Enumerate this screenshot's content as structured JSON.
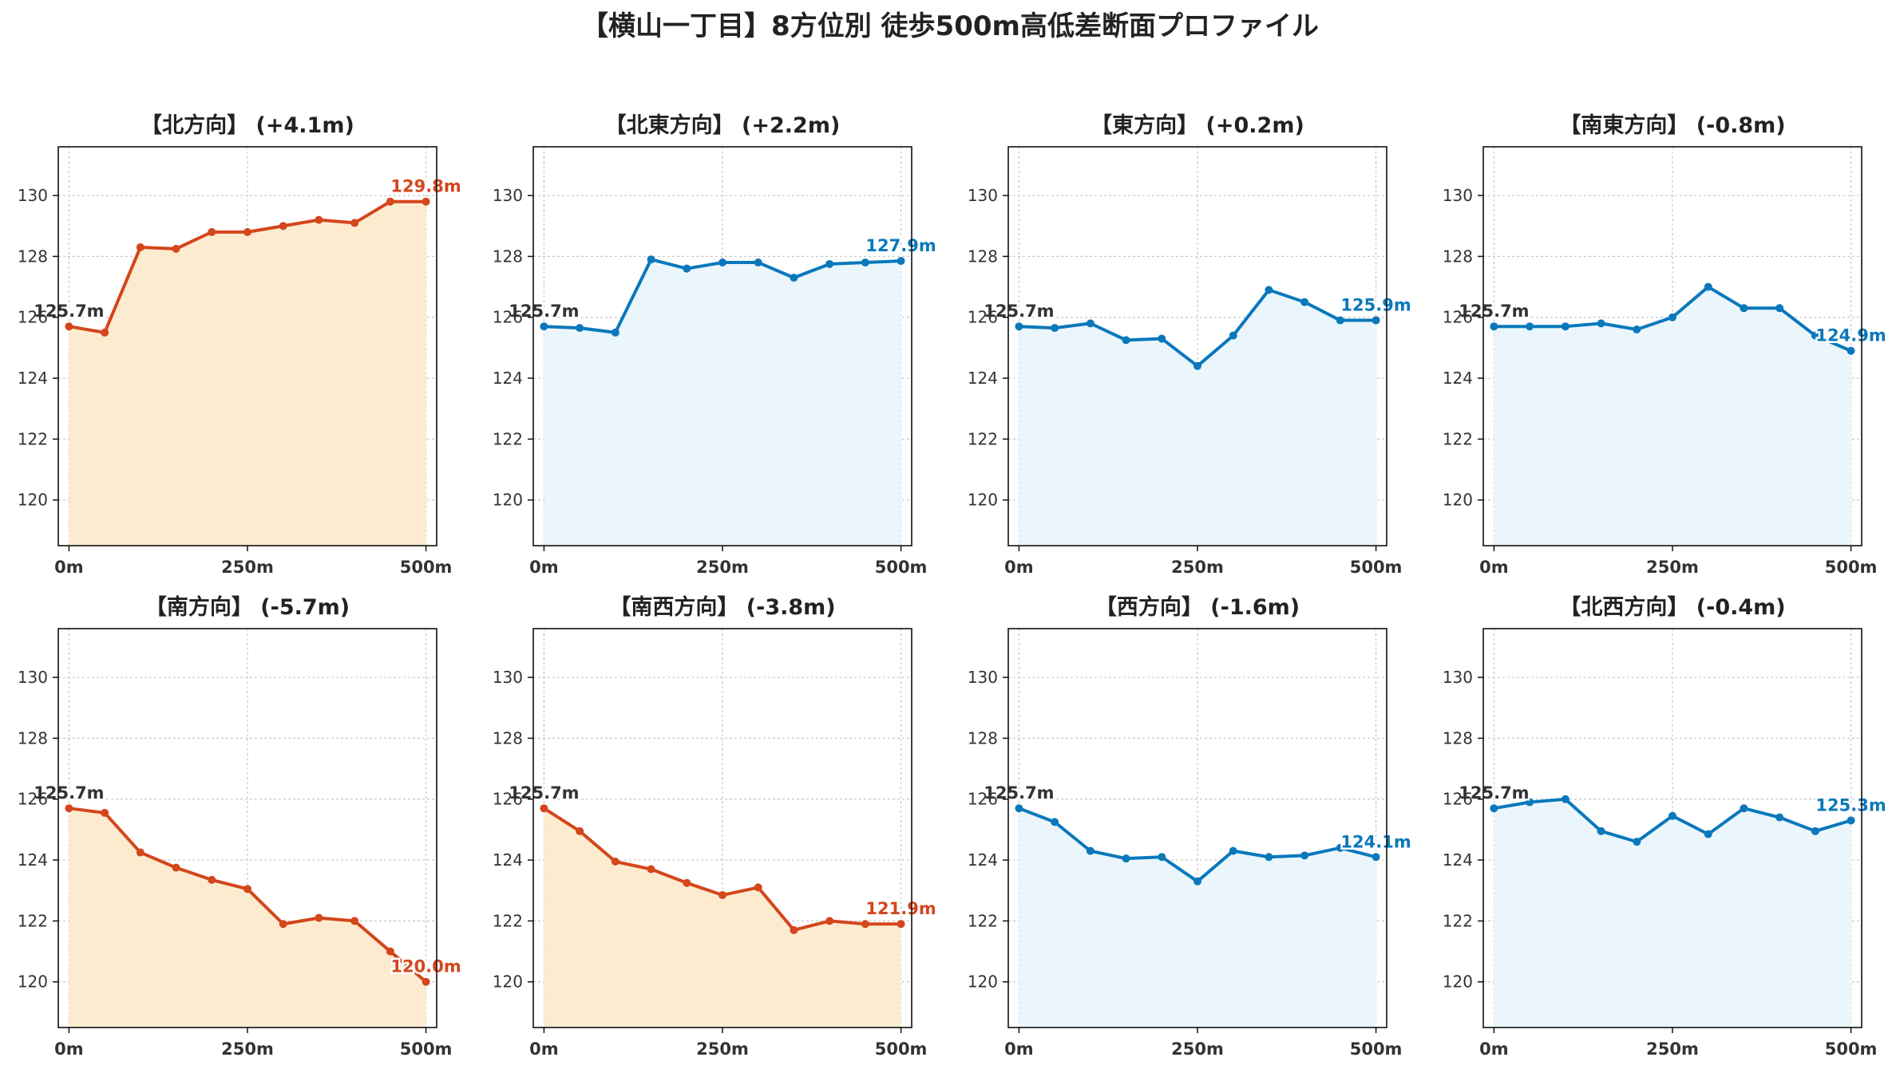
{
  "chart_data": {
    "title": "【横山一丁目】8方位別 徒歩500m高低差断面プロファイル",
    "type": "line",
    "colors": {
      "up": {
        "line": "#d4461c",
        "fill": "#fdebd0"
      },
      "down": {
        "line": "#0a78bb",
        "fill": "#eaf6fc"
      },
      "start_label": "#333333"
    },
    "x": [
      0,
      50,
      100,
      150,
      200,
      250,
      300,
      350,
      400,
      450,
      500
    ],
    "xticks": [
      0,
      250,
      500
    ],
    "xtick_labels": [
      "0m",
      "250m",
      "500m"
    ],
    "xlim": [
      -15,
      515
    ],
    "ylim": [
      118.5,
      131.6
    ],
    "yticks": [
      120,
      122,
      124,
      126,
      128,
      130
    ],
    "ytick_labels": [
      "120",
      "122",
      "124",
      "126",
      "128",
      "130"
    ],
    "grid": true,
    "panels": [
      {
        "title": "【北方向】 (+4.1m)",
        "trend": "up",
        "values": [
          125.7,
          125.5,
          128.3,
          128.25,
          128.8,
          128.8,
          129.0,
          129.2,
          129.1,
          129.8,
          129.8
        ],
        "start_label": "125.7m",
        "end_label": "129.8m"
      },
      {
        "title": "【北東方向】 (+2.2m)",
        "trend": "down",
        "values": [
          125.7,
          125.65,
          125.5,
          127.9,
          127.6,
          127.8,
          127.8,
          127.3,
          127.75,
          127.8,
          127.85
        ],
        "start_label": "125.7m",
        "end_label": "127.9m"
      },
      {
        "title": "【東方向】 (+0.2m)",
        "trend": "down",
        "values": [
          125.7,
          125.65,
          125.8,
          125.25,
          125.3,
          124.4,
          125.4,
          126.9,
          126.5,
          125.9,
          125.9
        ],
        "start_label": "125.7m",
        "end_label": "125.9m"
      },
      {
        "title": "【南東方向】 (-0.8m)",
        "trend": "down",
        "values": [
          125.7,
          125.7,
          125.7,
          125.8,
          125.6,
          126.0,
          127.0,
          126.3,
          126.3,
          125.4,
          124.9
        ],
        "start_label": "125.7m",
        "end_label": "124.9m"
      },
      {
        "title": "【南方向】 (-5.7m)",
        "trend": "up",
        "values": [
          125.7,
          125.55,
          124.25,
          123.75,
          123.35,
          123.05,
          121.9,
          122.1,
          122.0,
          121.0,
          120.0
        ],
        "start_label": "125.7m",
        "end_label": "120.0m"
      },
      {
        "title": "【南西方向】 (-3.8m)",
        "trend": "up",
        "values": [
          125.7,
          124.95,
          123.95,
          123.7,
          123.25,
          122.85,
          123.1,
          121.7,
          122.0,
          121.9,
          121.9
        ],
        "start_label": "125.7m",
        "end_label": "121.9m"
      },
      {
        "title": "【西方向】 (-1.6m)",
        "trend": "down",
        "values": [
          125.7,
          125.25,
          124.3,
          124.05,
          124.1,
          123.3,
          124.3,
          124.1,
          124.15,
          124.4,
          124.1
        ],
        "start_label": "125.7m",
        "end_label": "124.1m"
      },
      {
        "title": "【北西方向】 (-0.4m)",
        "trend": "down",
        "values": [
          125.7,
          125.9,
          126.0,
          124.95,
          124.6,
          125.45,
          124.85,
          125.7,
          125.4,
          124.95,
          125.3
        ],
        "start_label": "125.7m",
        "end_label": "125.3m"
      }
    ]
  }
}
